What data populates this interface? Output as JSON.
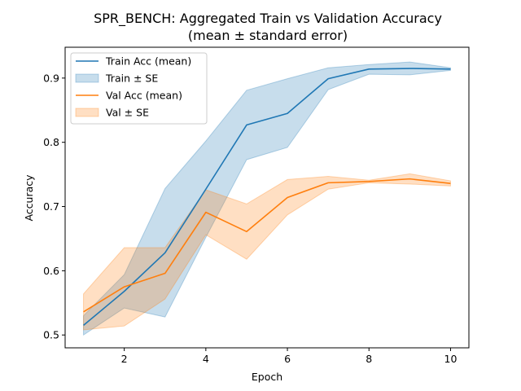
{
  "chart_data": {
    "type": "line",
    "title": "SPR_BENCH: Aggregated Train vs Validation Accuracy",
    "subtitle": "(mean ± standard error)",
    "xlabel": "Epoch",
    "ylabel": "Accuracy",
    "xlim": [
      0.55,
      10.45
    ],
    "ylim": [
      0.48,
      0.948
    ],
    "xticks": [
      2,
      4,
      6,
      8,
      10
    ],
    "yticks": [
      0.5,
      0.6,
      0.7,
      0.8,
      0.9
    ],
    "ytick_labels": [
      "0.5",
      "0.6",
      "0.7",
      "0.8",
      "0.9"
    ],
    "grid": false,
    "legend_position": "top-left",
    "x": [
      1,
      2,
      3,
      4,
      5,
      6,
      7,
      8,
      9,
      10
    ],
    "series": [
      {
        "name": "Train Acc (mean)",
        "band_name": "Train ± SE",
        "color": "#1f77b4",
        "values": [
          0.515,
          0.568,
          0.628,
          0.727,
          0.827,
          0.845,
          0.899,
          0.914,
          0.915,
          0.914
        ],
        "lower": [
          0.5,
          0.542,
          0.528,
          0.652,
          0.773,
          0.792,
          0.882,
          0.906,
          0.905,
          0.912
        ],
        "upper": [
          0.53,
          0.594,
          0.728,
          0.802,
          0.881,
          0.899,
          0.916,
          0.921,
          0.925,
          0.916
        ]
      },
      {
        "name": "Val Acc (mean)",
        "band_name": "Val ± SE",
        "color": "#ff7f0e",
        "values": [
          0.536,
          0.575,
          0.596,
          0.691,
          0.661,
          0.714,
          0.737,
          0.739,
          0.743,
          0.736
        ],
        "lower": [
          0.508,
          0.514,
          0.556,
          0.656,
          0.618,
          0.687,
          0.727,
          0.737,
          0.735,
          0.732
        ],
        "upper": [
          0.564,
          0.636,
          0.636,
          0.726,
          0.704,
          0.742,
          0.747,
          0.741,
          0.751,
          0.74
        ]
      }
    ]
  }
}
